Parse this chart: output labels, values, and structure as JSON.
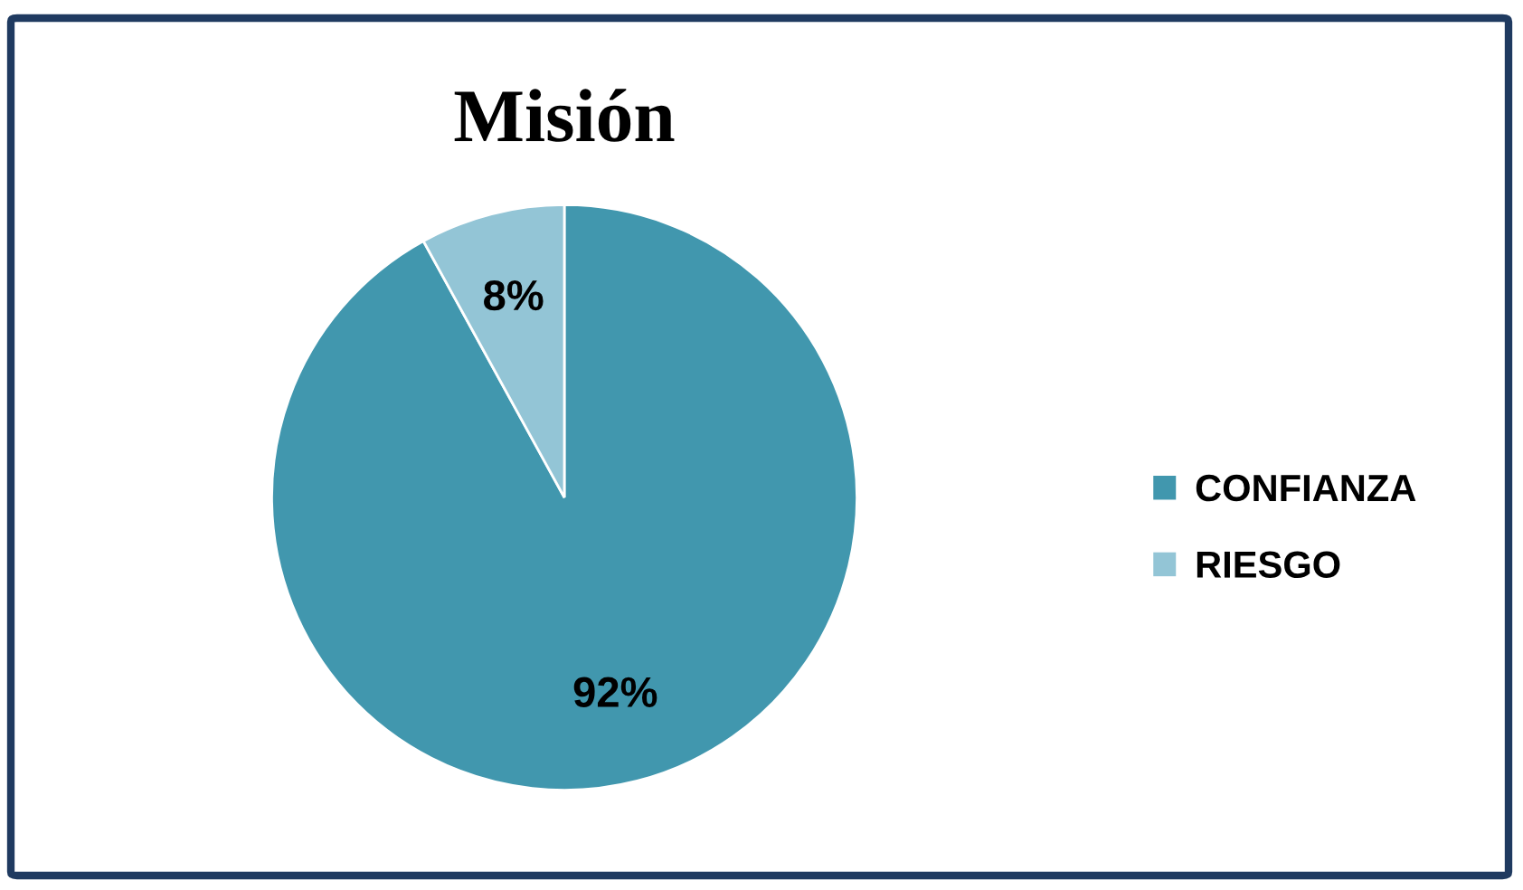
{
  "chart_data": {
    "type": "pie",
    "title": "Misión",
    "categories": [
      "CONFIANZA",
      "RIESGO"
    ],
    "values": [
      92,
      8
    ],
    "colors": [
      "#4197ae",
      "#93c5d6"
    ],
    "value_labels": [
      "92%",
      "8%"
    ],
    "legend": "right"
  }
}
